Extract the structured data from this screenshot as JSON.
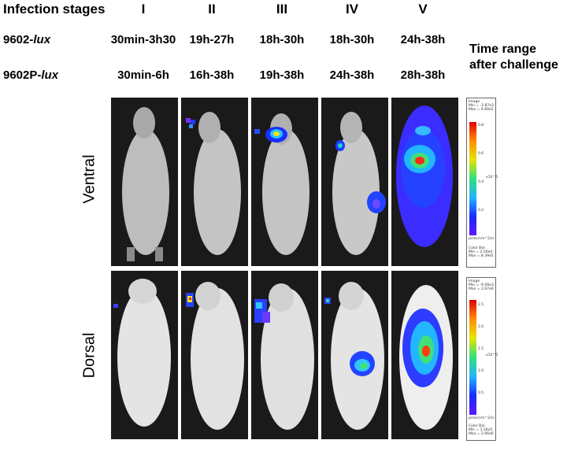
{
  "header": {
    "row_label": "Infection stages",
    "stages": [
      "I",
      "II",
      "III",
      "IV",
      "V"
    ]
  },
  "strains": [
    {
      "label_prefix": "9602-",
      "label_italic": "lux",
      "times": [
        "30min-3h30",
        "19h-27h",
        "18h-30h",
        "18h-30h",
        "24h-38h"
      ]
    },
    {
      "label_prefix": "9602P-",
      "label_italic": "lux",
      "times": [
        "30min-6h",
        "16h-38h",
        "19h-38h",
        "24h-38h",
        "28h-38h"
      ]
    }
  ],
  "time_range_label": "Time range after challenge",
  "views": [
    "Ventral",
    "Dorsal"
  ],
  "colorbars": [
    {
      "image_label": "Image",
      "image_min": "Min = -2.87e3",
      "image_max": "Max = 9.80e5",
      "ticks": [
        "0.8",
        "0.6",
        "0.4",
        "0.2"
      ],
      "scale": "x10^6",
      "units": "p/sec/cm^2/sr",
      "bar_label": "Color Bar",
      "bar_min": "Min = 2.56e4",
      "bar_max": "Max = 8.39e5"
    },
    {
      "image_label": "Image",
      "image_min": "Min = -6.06e3",
      "image_max": "Max = 2.67e6",
      "ticks": [
        "2.5",
        "2.0",
        "1.5",
        "1.0",
        "0.5"
      ],
      "scale": "x10^6",
      "units": "p/sec/cm^2/sr",
      "bar_label": "Color Bar",
      "bar_min": "Min = 1.34e5",
      "bar_max": "Max = 2.66e6"
    }
  ]
}
